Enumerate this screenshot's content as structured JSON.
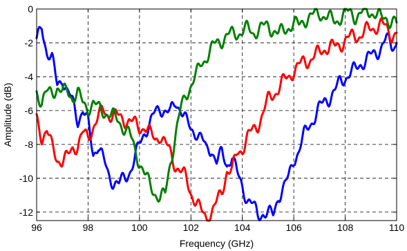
{
  "chart_data": {
    "type": "line",
    "title": "",
    "xlabel": "Frequency (GHz)",
    "ylabel": "Amplitude (dB)",
    "xlim": [
      96,
      110
    ],
    "ylim": [
      -12.5,
      0
    ],
    "x_ticks": [
      96,
      98,
      100,
      102,
      104,
      106,
      108,
      110
    ],
    "y_ticks": [
      0,
      -2,
      -4,
      -6,
      -8,
      -10,
      -12
    ],
    "x_tick_labels": [
      "96",
      "98",
      "100",
      "102",
      "104",
      "106",
      "108",
      "110"
    ],
    "y_tick_labels": [
      "0",
      "-2",
      "-4",
      "-6",
      "-8",
      "-10",
      "-12"
    ],
    "grid": true,
    "legend": "none",
    "series": [
      {
        "color": "#0000ff",
        "x": [
          96.0,
          96.2,
          96.4,
          96.6,
          96.8,
          97.0,
          97.2,
          97.4,
          97.6,
          97.8,
          98.0,
          98.2,
          98.4,
          98.6,
          98.8,
          99.0,
          99.2,
          99.4,
          99.6,
          99.8,
          100.0,
          100.2,
          100.4,
          100.6,
          100.8,
          101.0,
          101.2,
          101.4,
          101.6,
          101.8,
          102.0,
          102.2,
          102.4,
          102.6,
          102.8,
          103.0,
          103.2,
          103.4,
          103.6,
          103.8,
          104.0,
          104.2,
          104.4,
          104.6,
          104.8,
          105.0,
          105.2,
          105.4,
          105.6,
          105.8,
          106.0,
          106.2,
          106.4,
          106.6,
          106.8,
          107.0,
          107.2,
          107.4,
          107.6,
          107.8,
          108.0,
          108.2,
          108.4,
          108.6,
          108.8,
          109.0,
          109.2,
          109.4,
          109.6,
          109.8,
          110.0
        ],
        "y": [
          -2.0,
          -1.0,
          -2.5,
          -3.0,
          -4.5,
          -4.0,
          -5.0,
          -5.5,
          -6.5,
          -6.0,
          -6.8,
          -8.5,
          -8.0,
          -9.0,
          -9.8,
          -10.2,
          -10.4,
          -10.0,
          -9.6,
          -9.0,
          -8.0,
          -7.2,
          -6.8,
          -6.2,
          -5.8,
          -6.0,
          -6.2,
          -5.5,
          -5.8,
          -6.6,
          -7.2,
          -7.2,
          -7.6,
          -8.4,
          -8.2,
          -9.0,
          -8.6,
          -9.2,
          -8.6,
          -9.8,
          -10.5,
          -11.2,
          -11.6,
          -12.2,
          -12.0,
          -12.1,
          -12.2,
          -11.0,
          -10.6,
          -10.0,
          -8.8,
          -8.4,
          -7.5,
          -6.8,
          -6.4,
          -5.9,
          -5.4,
          -5.2,
          -4.9,
          -4.3,
          -4.0,
          -3.8,
          -3.6,
          -3.2,
          -3.0,
          -2.8,
          -2.6,
          -2.2,
          -1.8,
          -2.2,
          -2.0
        ]
      },
      {
        "color": "#ff0000",
        "x": [
          96.0,
          96.2,
          96.4,
          96.6,
          96.8,
          97.0,
          97.2,
          97.4,
          97.6,
          97.8,
          98.0,
          98.2,
          98.4,
          98.6,
          98.8,
          99.0,
          99.2,
          99.4,
          99.6,
          99.8,
          100.0,
          100.2,
          100.4,
          100.6,
          100.8,
          101.0,
          101.2,
          101.4,
          101.6,
          101.8,
          102.0,
          102.2,
          102.4,
          102.6,
          102.8,
          103.0,
          103.2,
          103.4,
          103.6,
          103.8,
          104.0,
          104.2,
          104.4,
          104.6,
          104.8,
          105.0,
          105.2,
          105.4,
          105.6,
          105.8,
          106.0,
          106.2,
          106.4,
          106.6,
          106.8,
          107.0,
          107.2,
          107.4,
          107.6,
          107.8,
          108.0,
          108.2,
          108.4,
          108.6,
          108.8,
          109.0,
          109.2,
          109.4,
          109.6,
          109.8,
          110.0
        ],
        "y": [
          -6.5,
          -7.5,
          -7.2,
          -8.2,
          -8.8,
          -9.0,
          -8.8,
          -8.2,
          -8.0,
          -7.4,
          -7.6,
          -6.9,
          -6.4,
          -6.0,
          -6.2,
          -6.3,
          -6.4,
          -6.5,
          -6.6,
          -6.8,
          -7.0,
          -6.9,
          -7.4,
          -7.7,
          -7.4,
          -8.0,
          -8.5,
          -9.2,
          -9.6,
          -10.0,
          -10.8,
          -11.4,
          -12.0,
          -12.3,
          -12.0,
          -11.5,
          -10.8,
          -9.5,
          -9.6,
          -8.5,
          -8.2,
          -7.6,
          -7.2,
          -6.8,
          -6.2,
          -5.4,
          -5.0,
          -4.7,
          -4.3,
          -4.0,
          -3.6,
          -3.4,
          -3.1,
          -3.0,
          -2.8,
          -2.6,
          -2.3,
          -2.2,
          -2.3,
          -2.1,
          -1.8,
          -1.7,
          -1.6,
          -1.5,
          -1.3,
          -1.2,
          -1.0,
          -0.9,
          -1.2,
          -1.5,
          -1.4
        ]
      },
      {
        "color": "#008000",
        "x": [
          96.0,
          96.2,
          96.4,
          96.6,
          96.8,
          97.0,
          97.2,
          97.4,
          97.6,
          97.8,
          98.0,
          98.2,
          98.4,
          98.6,
          98.8,
          99.0,
          99.2,
          99.4,
          99.6,
          99.8,
          100.0,
          100.2,
          100.4,
          100.6,
          100.8,
          101.0,
          101.2,
          101.4,
          101.6,
          101.8,
          102.0,
          102.2,
          102.4,
          102.6,
          102.8,
          103.0,
          103.2,
          103.4,
          103.6,
          103.8,
          104.0,
          104.2,
          104.4,
          104.6,
          104.8,
          105.0,
          105.2,
          105.4,
          105.6,
          105.8,
          106.0,
          106.2,
          106.4,
          106.6,
          106.8,
          107.0,
          107.2,
          107.4,
          107.6,
          107.8,
          108.0,
          108.2,
          108.4,
          108.6,
          108.8,
          109.0,
          109.2,
          109.4,
          109.6,
          109.8,
          110.0
        ],
        "y": [
          -4.8,
          -5.5,
          -5.0,
          -4.9,
          -4.6,
          -5.0,
          -4.8,
          -5.2,
          -5.0,
          -5.6,
          -5.8,
          -5.6,
          -5.9,
          -6.0,
          -6.2,
          -6.4,
          -6.6,
          -7.0,
          -7.4,
          -8.2,
          -9.0,
          -9.8,
          -10.4,
          -10.8,
          -11.2,
          -11.0,
          -9.0,
          -7.5,
          -6.0,
          -5.0,
          -4.5,
          -4.0,
          -3.2,
          -2.8,
          -2.4,
          -2.0,
          -1.8,
          -1.6,
          -1.5,
          -1.4,
          -1.3,
          -1.2,
          -1.4,
          -1.2,
          -1.1,
          -1.0,
          -1.2,
          -1.5,
          -1.3,
          -1.0,
          -0.9,
          -1.0,
          -0.6,
          -0.5,
          -0.4,
          -0.2,
          -0.4,
          -0.6,
          -0.7,
          -0.5,
          -0.3,
          -0.2,
          -0.4,
          -0.3,
          -0.2,
          -0.1,
          -0.3,
          -0.6,
          -0.5,
          -0.7,
          -0.8
        ]
      }
    ]
  }
}
